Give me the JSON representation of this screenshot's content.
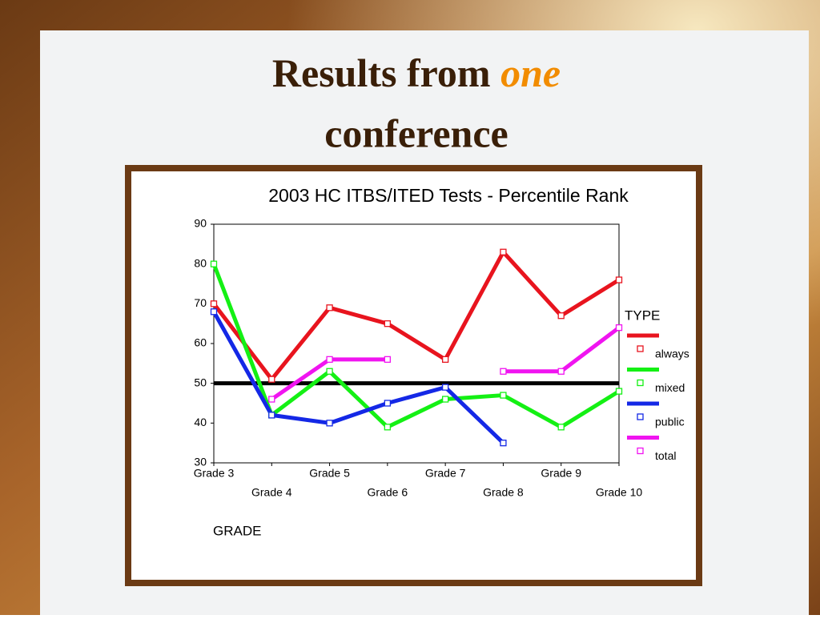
{
  "slide": {
    "title_before": "Results from",
    "title_emphasis": "one",
    "title_after": "conference"
  },
  "chart_data": {
    "type": "line",
    "title": "2003 HC ITBS/ITED Tests - Percentile Rank",
    "x_label": "GRADE",
    "categories": [
      "Grade 3",
      "Grade 4",
      "Grade 5",
      "Grade 6",
      "Grade 7",
      "Grade 8",
      "Grade 9",
      "Grade 10"
    ],
    "series": [
      {
        "name": "always",
        "color": "#e8141e",
        "values": [
          70,
          51,
          69,
          65,
          56,
          83,
          67,
          76
        ]
      },
      {
        "name": "mixed",
        "color": "#14f014",
        "values": [
          80,
          42,
          53,
          39,
          46,
          47,
          39,
          48
        ]
      },
      {
        "name": "public",
        "color": "#1428e6",
        "values": [
          68,
          42,
          40,
          45,
          49,
          35,
          null,
          null
        ]
      },
      {
        "name": "total",
        "color": "#f014f0",
        "values": [
          null,
          46,
          56,
          56,
          null,
          53,
          53,
          64
        ]
      }
    ],
    "reference_line": 50,
    "legend_title": "TYPE",
    "ylim": [
      30,
      90
    ],
    "yticks": [
      30,
      40,
      50,
      60,
      70,
      80,
      90
    ]
  }
}
